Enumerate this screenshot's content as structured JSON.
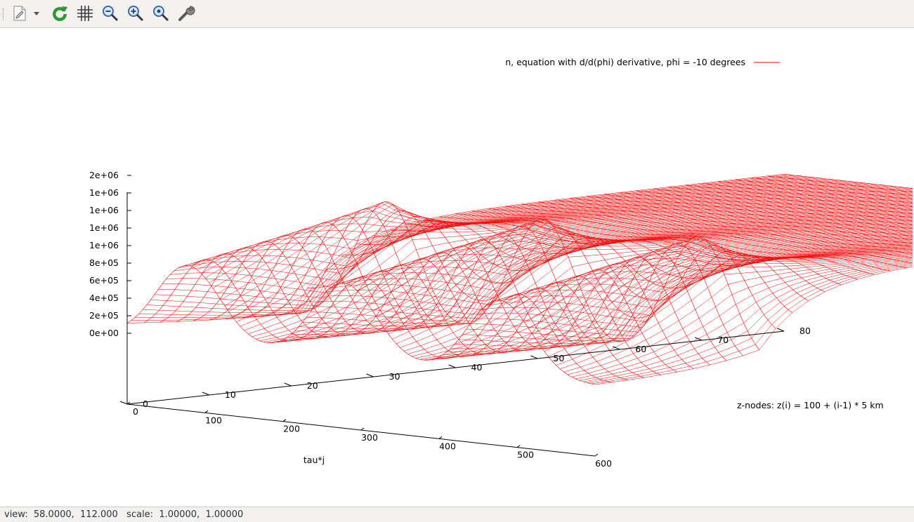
{
  "toolbar": {
    "items": [
      "export-icon",
      "export-dropdown-icon",
      "replot-icon",
      "grid-icon",
      "zoom-out-icon",
      "zoom-in-icon",
      "zoom-reset-icon",
      "settings-icon"
    ]
  },
  "status": {
    "text": "view:  58.0000,  112.000   scale:  1.00000,  1.00000"
  },
  "chart_data": {
    "type": "surface",
    "legend": "n, equation with d/d(phi) derivative, phi = -10 degrees",
    "legend_position": "top-right",
    "color": "#ff0000",
    "xlabel": "tau*j",
    "ylabel": "z-nodes: z(i) = 100 + (i-1) * 5 km",
    "zlabel": "",
    "xlim": [
      0,
      600
    ],
    "ylim": [
      0,
      80
    ],
    "x_ticks": [
      "0",
      "100",
      "200",
      "300",
      "400",
      "500",
      "600"
    ],
    "y_ticks": [
      "0",
      "10",
      "20",
      "30",
      "40",
      "50",
      "60",
      "70",
      "80"
    ],
    "z_ticks": [
      "0e+00",
      "2e+05",
      "4e+05",
      "6e+05",
      "8e+05",
      "1e+06",
      "1e+06",
      "1e+06",
      "1e+06",
      "2e+06"
    ],
    "view": [
      58,
      112
    ],
    "peak_value": 1800000,
    "peak_times": [
      100,
      300,
      500
    ],
    "background_level": 1100000
  }
}
